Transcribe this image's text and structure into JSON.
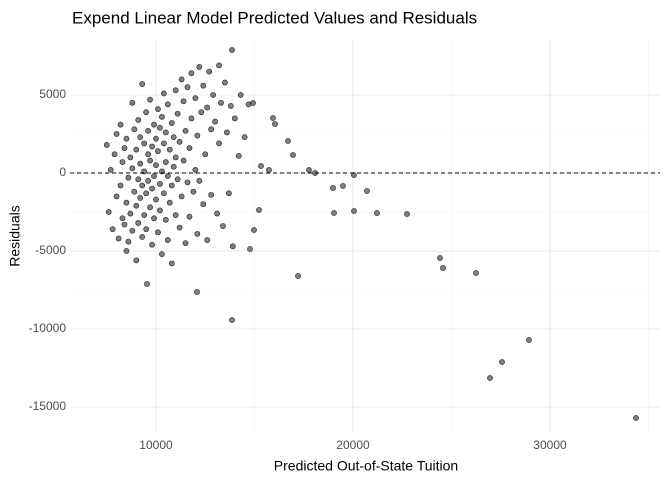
{
  "chart_data": {
    "type": "scatter",
    "title": "Expend Linear Model Predicted Values and Residuals",
    "x_label": "Predicted Out-of-State Tuition",
    "y_label": "Residuals",
    "color": "#000000",
    "hline": 0,
    "grid": true,
    "xlim": [
      5635,
      35584
    ],
    "ylim": [
      -16603,
      8526
    ],
    "xticks": [
      10000,
      20000,
      30000
    ],
    "yticks": [
      -15000,
      -10000,
      -5000,
      0,
      5000
    ],
    "x_minor_ticks": [
      5000,
      15000,
      25000,
      35000
    ],
    "y_minor_ticks": [
      -12500,
      -7500,
      -2500,
      2500,
      7500
    ],
    "x": [
      7500,
      7600,
      7700,
      7800,
      7900,
      8000,
      8000,
      8100,
      8200,
      8200,
      8300,
      8300,
      8400,
      8400,
      8500,
      8500,
      8500,
      8600,
      8600,
      8700,
      8700,
      8800,
      8800,
      8800,
      8900,
      8900,
      9000,
      9000,
      9000,
      9100,
      9100,
      9100,
      9200,
      9200,
      9200,
      9300,
      9300,
      9300,
      9400,
      9400,
      9400,
      9500,
      9500,
      9500,
      9600,
      9600,
      9600,
      9700,
      9700,
      9700,
      9800,
      9800,
      9800,
      9900,
      9900,
      9900,
      10000,
      10000,
      10000,
      10100,
      10100,
      10100,
      10200,
      10200,
      10200,
      10300,
      10300,
      10300,
      10400,
      10400,
      10400,
      10500,
      10500,
      10500,
      10600,
      10600,
      10600,
      10700,
      10700,
      10800,
      10800,
      10800,
      10900,
      10900,
      11000,
      11000,
      11000,
      11100,
      11100,
      11200,
      11200,
      11300,
      11300,
      11400,
      11400,
      11500,
      11500,
      11600,
      11600,
      11700,
      11700,
      11800,
      11800,
      11900,
      12000,
      12000,
      12100,
      12100,
      12200,
      12200,
      12300,
      12400,
      12400,
      12500,
      12600,
      12600,
      12700,
      12800,
      12800,
      12900,
      13000,
      13100,
      13200,
      13200,
      13300,
      13400,
      13500,
      13600,
      13700,
      13800,
      13900,
      14000,
      14200,
      14300,
      14500,
      14700,
      9543,
      12081,
      13858,
      13858,
      14924,
      14772,
      14975,
      15228,
      15330,
      15736,
      15939,
      16040,
      16700,
      16954,
      17208,
      17766,
      18071,
      18985,
      19036,
      19492,
      20051,
      20051,
      20711,
      21218,
      22741,
      24416,
      24569,
      26244,
      26954,
      27563,
      28934,
      34365
    ],
    "values": [
      1800,
      -2500,
      200,
      -3600,
      1200,
      -1500,
      2500,
      -4200,
      -800,
      3100,
      -2900,
      700,
      -3300,
      1600,
      -5000,
      -1900,
      2200,
      -300,
      -4400,
      1000,
      -2600,
      4500,
      -3700,
      300,
      -1200,
      2800,
      -5600,
      -2100,
      1500,
      -400,
      3400,
      -3200,
      600,
      -1600,
      2300,
      5700,
      -4100,
      -800,
      1900,
      -2700,
      100,
      3900,
      -1300,
      -3600,
      1200,
      -500,
      2700,
      -2200,
      4700,
      800,
      -4600,
      -1000,
      1700,
      3100,
      -200,
      -2900,
      2200,
      500,
      -1700,
      4100,
      -3800,
      1400,
      -700,
      2900,
      -2400,
      100,
      3600,
      -5200,
      1900,
      -1300,
      5100,
      -3000,
      700,
      2600,
      -200,
      -4300,
      4400,
      1500,
      -1900,
      3200,
      -800,
      -5800,
      2300,
      400,
      5300,
      -2700,
      1000,
      -400,
      3800,
      -3500,
      2000,
      6000,
      -1500,
      800,
      4600,
      -4500,
      2700,
      -600,
      5500,
      1600,
      -2800,
      3500,
      6400,
      -1200,
      4800,
      200,
      -3900,
      2400,
      6800,
      -500,
      3900,
      -2000,
      5600,
      1200,
      4200,
      -4300,
      6500,
      2800,
      -1400,
      5000,
      3300,
      -2600,
      6900,
      1900,
      4500,
      -3400,
      5800,
      2600,
      -1300,
      4300,
      -4700,
      3500,
      1100,
      5000,
      2300,
      4400,
      -7115,
      -7628,
      -9423,
      7885,
      4487,
      -4872,
      -3654,
      -2372,
      449,
      192,
      3526,
      3141,
      2051,
      1154,
      -6603,
      192,
      0,
      -962,
      -2564,
      -833,
      -2436,
      -128,
      -1154,
      -2564,
      -2628,
      -5449,
      -6090,
      -6410,
      -13141,
      -12115,
      -10705,
      -15705
    ]
  }
}
